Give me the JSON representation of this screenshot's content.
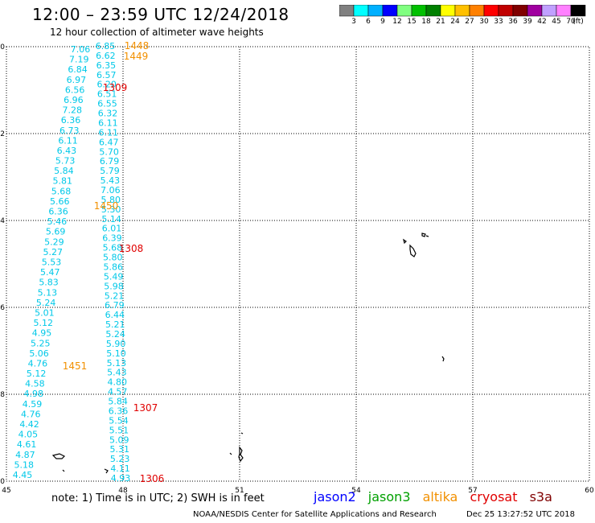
{
  "header": {
    "title": "12:00 – 23:59 UTC 12/24/2018",
    "subtitle": "12 hour collection of altimeter wave heights"
  },
  "legend": {
    "colors": [
      "#808080",
      "#00ffff",
      "#00b0ff",
      "#0000ff",
      "#80ff80",
      "#00c000",
      "#008000",
      "#ffff00",
      "#ffc000",
      "#ff8000",
      "#ff0000",
      "#c00000",
      "#800000",
      "#a000a0",
      "#c0a0ff",
      "#ff80ff",
      "#000000"
    ],
    "labels": [
      "3",
      "6",
      "9",
      "12",
      "15",
      "18",
      "21",
      "24",
      "27",
      "30",
      "33",
      "36",
      "39",
      "42",
      "45",
      "70",
      "(ft)"
    ]
  },
  "axes": {
    "x_ticks": [
      "45",
      "48",
      "51",
      "54",
      "57",
      "60"
    ],
    "y_ticks": [
      "0",
      "-2",
      "-4",
      "-6",
      "-8",
      "-10"
    ]
  },
  "track_color": "#00c8e8",
  "label_colors": {
    "orange": "#f29000",
    "red": "#e00000"
  },
  "tracks": {
    "left": [
      "7.06",
      "7.19",
      "6.84",
      "6.97",
      "6.56",
      "6.96",
      "7.28",
      "6.36",
      "6.73",
      "6.11",
      "6.43",
      "5.73",
      "5.84",
      "5.81",
      "5.68",
      "5.66",
      "6.36",
      "5.46",
      "5.69",
      "5.29",
      "5.27",
      "5.53",
      "5.47",
      "5.83",
      "5.13",
      "5.24",
      "5.01",
      "5.12",
      "4.95",
      "5.25",
      "5.06",
      "4.76",
      "5.12",
      "4.58",
      "4.98",
      "4.59",
      "4.76",
      "4.42",
      "4.05",
      "4.61",
      "4.87",
      "5.18",
      "4.45"
    ],
    "right": [
      "6.85",
      "6.62",
      "6.35",
      "6.57",
      "6.20",
      "6.51",
      "6.55",
      "6.32",
      "6.11",
      "6.11",
      "6.47",
      "5.70",
      "6.79",
      "5.79",
      "5.43",
      "7.06",
      "5.80",
      "5.30",
      "5.14",
      "6.01",
      "6.39",
      "5.68",
      "5.80",
      "5.86",
      "5.49",
      "5.98",
      "5.21",
      "6.79",
      "6.44",
      "5.21",
      "5.24",
      "5.90",
      "5.10",
      "5.13",
      "5.43",
      "4.80",
      "4.57",
      "5.84",
      "6.36",
      "5.54",
      "5.51",
      "5.09",
      "5.31",
      "5.23",
      "4.11",
      "4.93"
    ]
  },
  "time_labels": [
    {
      "text": "1448",
      "color": "orange"
    },
    {
      "text": "1449",
      "color": "orange"
    },
    {
      "text": "1309",
      "color": "red"
    },
    {
      "text": "1450",
      "color": "orange"
    },
    {
      "text": "1308",
      "color": "red"
    },
    {
      "text": "1451",
      "color": "orange"
    },
    {
      "text": "1307",
      "color": "red"
    },
    {
      "text": "1306",
      "color": "red"
    }
  ],
  "footer": {
    "note": "note:  1) Time is in UTC;  2) SWH is in feet",
    "satellites": [
      {
        "name": "jason2",
        "color": "#0000ff"
      },
      {
        "name": "jason3",
        "color": "#00a000"
      },
      {
        "name": "altika",
        "color": "#f29000"
      },
      {
        "name": "cryosat",
        "color": "#e00000"
      },
      {
        "name": "s3a",
        "color": "#800000"
      }
    ],
    "credit": "NOAA/NESDIS Center for Satellite Applications and Research",
    "timestamp": "Dec 25 13:27:52 UTC 2018"
  }
}
